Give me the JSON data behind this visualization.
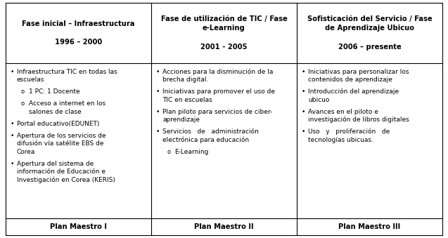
{
  "figsize": [
    6.37,
    3.39
  ],
  "dpi": 100,
  "background": "#ffffff",
  "headers": [
    "Fase inicial – Infraestructura\n\n1996 – 2000",
    "Fase de utilización de TIC / Fase\ne-Learning\n\n2001 - 2005",
    "Sofisticación del Servicio / Fase\nde Aprendizaje Ubicuo\n\n2006 – presente"
  ],
  "footers": [
    "Plan Maestro I",
    "Plan Maestro II",
    "Plan Maestro III"
  ],
  "col1_items": [
    {
      "bullet": "•",
      "indent": 0,
      "lines": [
        "Infraestructura TIC en todas las",
        "escuelas"
      ]
    },
    {
      "bullet": "o",
      "indent": 1,
      "lines": [
        "1 PC: 1 Docente"
      ]
    },
    {
      "bullet": "o",
      "indent": 1,
      "lines": [
        "Acceso a internet en los",
        "salones de clase"
      ]
    },
    {
      "bullet": "•",
      "indent": 0,
      "lines": [
        "Portal educativo(EDUNET)"
      ]
    },
    {
      "bullet": "•",
      "indent": 0,
      "lines": [
        "Apertura de los servicios de",
        "difusión vía satélite EBS de",
        "Corea"
      ]
    },
    {
      "bullet": "•",
      "indent": 0,
      "lines": [
        "Apertura del sistema de",
        "información de Educación e",
        "Investigación en Corea (KERIS)"
      ]
    }
  ],
  "col2_items": [
    {
      "bullet": "•",
      "indent": 0,
      "lines": [
        "Acciones para la disminución de la",
        "brecha digital."
      ]
    },
    {
      "bullet": "•",
      "indent": 0,
      "lines": [
        "Iniciativas para promover el uso de",
        "TIC en escuelas"
      ]
    },
    {
      "bullet": "•",
      "indent": 0,
      "lines": [
        "Plan piloto para servicios de ciber-",
        "aprendizaje"
      ]
    },
    {
      "bullet": "•",
      "indent": 0,
      "lines": [
        "Servicios   de   administración",
        "electrónica para educación"
      ]
    },
    {
      "bullet": "o",
      "indent": 1,
      "lines": [
        "E-Learning"
      ]
    }
  ],
  "col3_items": [
    {
      "bullet": "•",
      "indent": 0,
      "lines": [
        "Iniciativas para personalizar los",
        "contenidos de aprendizaje"
      ]
    },
    {
      "bullet": "•",
      "indent": 0,
      "lines": [
        "Introducción del aprendizaje",
        "ubicuo"
      ]
    },
    {
      "bullet": "•",
      "indent": 0,
      "lines": [
        "Avances en el piloto e",
        "investigación de libros digitales"
      ]
    },
    {
      "bullet": "•",
      "indent": 0,
      "lines": [
        "Uso   y   proliferación   de",
        "tecnologías ubicuas."
      ]
    }
  ],
  "header_fs": 7.2,
  "body_fs": 6.5,
  "footer_fs": 7.2,
  "line_color": "#000000",
  "line_width": 0.8
}
